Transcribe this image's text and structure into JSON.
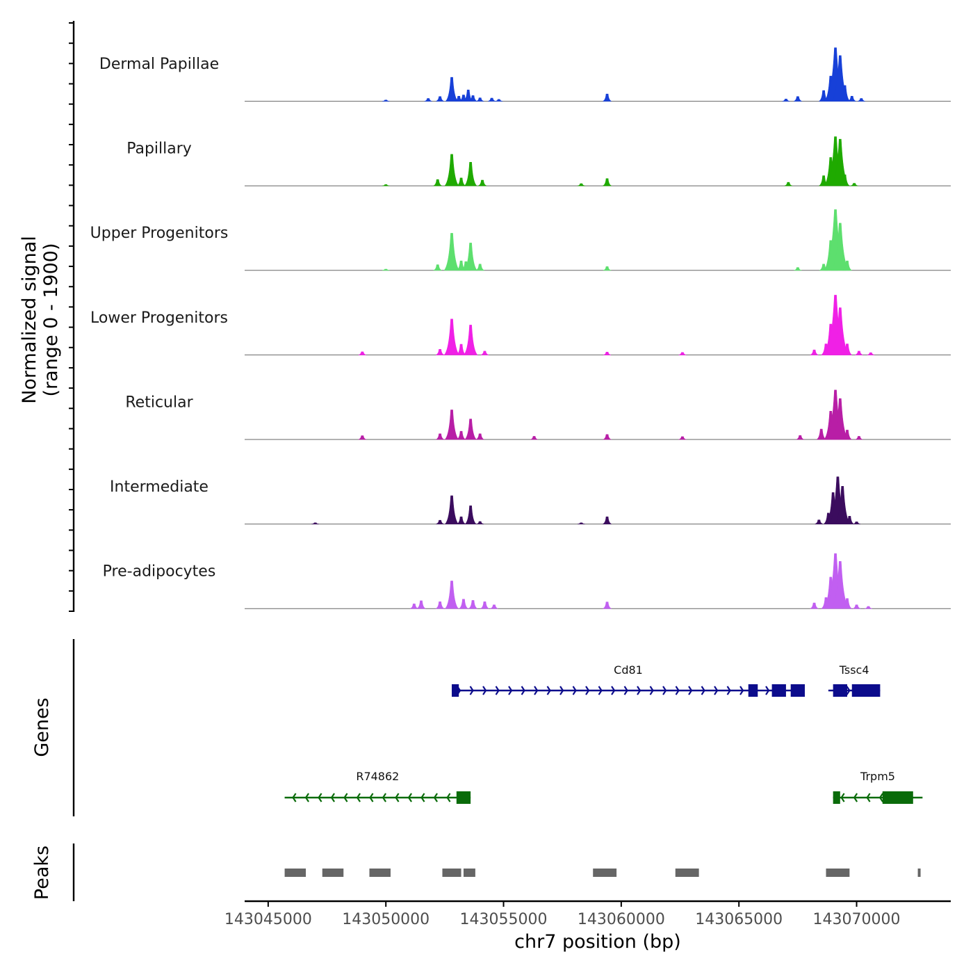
{
  "chart_data": {
    "type": "genome_tracks",
    "region": {
      "chrom": "chr7",
      "start": 143044000,
      "end": 143074000
    },
    "xlabel": "chr7 position (bp)",
    "xticks": [
      143045000,
      143050000,
      143055000,
      143060000,
      143065000,
      143070000
    ],
    "xtick_labels": [
      "143045000",
      "143050000",
      "143055000",
      "143060000",
      "143065000",
      "143070000"
    ],
    "ylabel_line1": "Normalized signal",
    "ylabel_line2": "(range 0 - 1900)",
    "ylim": [
      0,
      1900
    ],
    "coverage_tracks": [
      {
        "name": "Dermal Papillae",
        "color": "#1740d8",
        "peaks": [
          [
            143050000,
            40
          ],
          [
            143051800,
            90
          ],
          [
            143052300,
            150
          ],
          [
            143052800,
            760
          ],
          [
            143053100,
            160
          ],
          [
            143053300,
            200
          ],
          [
            143053500,
            360
          ],
          [
            143053700,
            180
          ],
          [
            143054000,
            110
          ],
          [
            143054500,
            100
          ],
          [
            143054800,
            60
          ],
          [
            143059400,
            230
          ],
          [
            143067000,
            70
          ],
          [
            143067500,
            150
          ],
          [
            143068600,
            340
          ],
          [
            143068900,
            800
          ],
          [
            143069100,
            1700
          ],
          [
            143069300,
            1450
          ],
          [
            143069500,
            500
          ],
          [
            143069800,
            160
          ],
          [
            143070200,
            90
          ]
        ]
      },
      {
        "name": "Papillary",
        "color": "#1faa00",
        "peaks": [
          [
            143050000,
            40
          ],
          [
            143052200,
            200
          ],
          [
            143052800,
            1000
          ],
          [
            143053200,
            250
          ],
          [
            143053600,
            750
          ],
          [
            143054100,
            180
          ],
          [
            143058300,
            70
          ],
          [
            143059400,
            230
          ],
          [
            143067100,
            110
          ],
          [
            143068600,
            320
          ],
          [
            143068900,
            900
          ],
          [
            143069100,
            1560
          ],
          [
            143069300,
            1480
          ],
          [
            143069500,
            350
          ],
          [
            143069900,
            80
          ]
        ]
      },
      {
        "name": "Upper Progenitors",
        "color": "#5ddf6e",
        "peaks": [
          [
            143050000,
            40
          ],
          [
            143052200,
            180
          ],
          [
            143052800,
            1180
          ],
          [
            143053200,
            300
          ],
          [
            143053400,
            280
          ],
          [
            143053600,
            870
          ],
          [
            143054000,
            200
          ],
          [
            143059400,
            120
          ],
          [
            143067500,
            90
          ],
          [
            143068600,
            200
          ],
          [
            143068900,
            950
          ],
          [
            143069100,
            1930
          ],
          [
            143069300,
            1500
          ],
          [
            143069600,
            300
          ]
        ]
      },
      {
        "name": "Lower Progenitors",
        "color": "#f020e6",
        "peaks": [
          [
            143049000,
            100
          ],
          [
            143052300,
            180
          ],
          [
            143052800,
            1140
          ],
          [
            143053200,
            340
          ],
          [
            143053600,
            950
          ],
          [
            143054200,
            120
          ],
          [
            143059400,
            90
          ],
          [
            143062600,
            80
          ],
          [
            143068200,
            160
          ],
          [
            143068700,
            350
          ],
          [
            143068900,
            980
          ],
          [
            143069100,
            1900
          ],
          [
            143069300,
            1500
          ],
          [
            143069600,
            350
          ],
          [
            143070100,
            120
          ],
          [
            143070600,
            70
          ]
        ]
      },
      {
        "name": "Reticular",
        "color": "#b81ea6",
        "peaks": [
          [
            143049000,
            120
          ],
          [
            143052300,
            180
          ],
          [
            143052800,
            940
          ],
          [
            143053200,
            260
          ],
          [
            143053600,
            650
          ],
          [
            143054000,
            180
          ],
          [
            143056300,
            100
          ],
          [
            143059400,
            160
          ],
          [
            143062600,
            90
          ],
          [
            143067600,
            130
          ],
          [
            143068500,
            330
          ],
          [
            143068900,
            900
          ],
          [
            143069100,
            1570
          ],
          [
            143069300,
            1300
          ],
          [
            143069600,
            300
          ],
          [
            143070100,
            100
          ]
        ]
      },
      {
        "name": "Intermediate",
        "color": "#3b0c5e",
        "peaks": [
          [
            143047000,
            40
          ],
          [
            143052300,
            120
          ],
          [
            143052800,
            900
          ],
          [
            143053200,
            230
          ],
          [
            143053600,
            580
          ],
          [
            143054000,
            80
          ],
          [
            143058300,
            40
          ],
          [
            143059400,
            230
          ],
          [
            143068400,
            130
          ],
          [
            143068800,
            350
          ],
          [
            143069000,
            1000
          ],
          [
            143069200,
            1500
          ],
          [
            143069400,
            1200
          ],
          [
            143069700,
            250
          ],
          [
            143070000,
            70
          ]
        ]
      },
      {
        "name": "Pre-adipocytes",
        "color": "#c15ff1",
        "peaks": [
          [
            143051200,
            150
          ],
          [
            143051500,
            250
          ],
          [
            143052300,
            220
          ],
          [
            143052800,
            880
          ],
          [
            143053300,
            300
          ],
          [
            143053700,
            260
          ],
          [
            143054200,
            220
          ],
          [
            143054600,
            120
          ],
          [
            143059400,
            210
          ],
          [
            143068200,
            180
          ],
          [
            143068700,
            350
          ],
          [
            143068900,
            1000
          ],
          [
            143069100,
            1750
          ],
          [
            143069300,
            1500
          ],
          [
            143069600,
            320
          ],
          [
            143070000,
            120
          ],
          [
            143070500,
            70
          ]
        ]
      }
    ],
    "genes": [
      {
        "name": "Cd81",
        "strand": "+",
        "row": 1,
        "color": "#0c0c8c",
        "start": 143052800,
        "end": 143067800,
        "exons": [
          [
            143052800,
            143053100
          ],
          [
            143065400,
            143065800
          ],
          [
            143066400,
            143067000
          ],
          [
            143067200,
            143067800
          ]
        ]
      },
      {
        "name": "Tssc4",
        "strand": "+",
        "row": 1,
        "color": "#0c0c8c",
        "start": 143068800,
        "end": 143071000,
        "exons": [
          [
            143069000,
            143069600
          ],
          [
            143069800,
            143071000
          ]
        ]
      },
      {
        "name": "R74862",
        "strand": "-",
        "row": 2,
        "color": "#0a6b0a",
        "start": 143045700,
        "end": 143053600,
        "exons": [
          [
            143053000,
            143053600
          ]
        ]
      },
      {
        "name": "Trpm5",
        "strand": "-",
        "row": 2,
        "color": "#0a6b0a",
        "start": 143069000,
        "end": 143072800,
        "exons": [
          [
            143069000,
            143069300
          ],
          [
            143071100,
            143072400
          ]
        ]
      }
    ],
    "peak_regions": [
      [
        143045700,
        143046600
      ],
      [
        143047300,
        143048200
      ],
      [
        143049300,
        143050200
      ],
      [
        143052400,
        143053200
      ],
      [
        143053300,
        143053800
      ],
      [
        143058800,
        143059800
      ],
      [
        143062300,
        143063300
      ],
      [
        143068700,
        143069700
      ],
      [
        143072600,
        143072700
      ]
    ],
    "panel_titles": {
      "genes": "Genes",
      "peaks": "Peaks"
    }
  }
}
